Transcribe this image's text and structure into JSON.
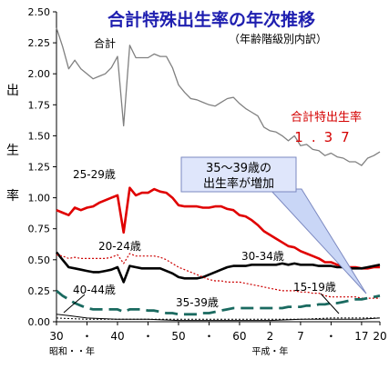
{
  "chart_data": {
    "type": "line",
    "title": "合計特殊出生率の年次推移",
    "subtitle": "（年齢階級別内訳）",
    "ylabel": [
      "出",
      "生",
      "率"
    ],
    "ylim": [
      0,
      2.5
    ],
    "yticks": [
      "0.00",
      "0.25",
      "0.50",
      "0.75",
      "1.00",
      "1.25",
      "1.50",
      "1.75",
      "2.00",
      "2.25",
      "2.50"
    ],
    "xlim": [
      1955,
      2008
    ],
    "xticks": [
      {
        "x": 1955,
        "label": "30"
      },
      {
        "x": 1960,
        "label": "・"
      },
      {
        "x": 1965,
        "label": "40"
      },
      {
        "x": 1970,
        "label": "・"
      },
      {
        "x": 1975,
        "label": "50"
      },
      {
        "x": 1980,
        "label": "・"
      },
      {
        "x": 1985,
        "label": "60"
      },
      {
        "x": 1990,
        "label": "2"
      },
      {
        "x": 1995,
        "label": "7"
      },
      {
        "x": 2000,
        "label": "・"
      },
      {
        "x": 2005,
        "label": "17"
      },
      {
        "x": 2008,
        "label": "20"
      }
    ],
    "era_labels": [
      {
        "x": 1955,
        "text": "昭和・・年"
      },
      {
        "x": 1990,
        "text": "平成・年"
      }
    ],
    "grid": false,
    "highlight": {
      "text": "1.37",
      "color": "#d40000",
      "label": "合計特出生率"
    },
    "callout": {
      "lines": [
        "35～39歳の",
        "出生率が増加"
      ]
    },
    "series": [
      {
        "name": "合計",
        "color": "#808080",
        "style": "solid",
        "width": 1.3,
        "x": [
          1955,
          1956,
          1957,
          1958,
          1959,
          1960,
          1961,
          1962,
          1963,
          1964,
          1965,
          1966,
          1967,
          1968,
          1969,
          1970,
          1971,
          1972,
          1973,
          1974,
          1975,
          1976,
          1977,
          1978,
          1979,
          1980,
          1981,
          1982,
          1983,
          1984,
          1985,
          1986,
          1987,
          1988,
          1989,
          1990,
          1991,
          1992,
          1993,
          1994,
          1995,
          1996,
          1997,
          1998,
          1999,
          2000,
          2001,
          2002,
          2003,
          2004,
          2005,
          2006,
          2007,
          2008
        ],
        "y": [
          2.37,
          2.22,
          2.04,
          2.11,
          2.04,
          2.0,
          1.96,
          1.98,
          2.0,
          2.05,
          2.14,
          1.58,
          2.23,
          2.13,
          2.13,
          2.13,
          2.16,
          2.14,
          2.14,
          2.05,
          1.91,
          1.85,
          1.8,
          1.79,
          1.77,
          1.75,
          1.74,
          1.77,
          1.8,
          1.81,
          1.76,
          1.72,
          1.69,
          1.66,
          1.57,
          1.54,
          1.53,
          1.5,
          1.46,
          1.5,
          1.42,
          1.43,
          1.39,
          1.38,
          1.34,
          1.36,
          1.33,
          1.32,
          1.29,
          1.29,
          1.26,
          1.32,
          1.34,
          1.37
        ]
      },
      {
        "name": "25-29歳",
        "color": "#e00000",
        "style": "solid",
        "width": 2.6,
        "x": [
          1955,
          1956,
          1957,
          1958,
          1959,
          1960,
          1961,
          1962,
          1963,
          1964,
          1965,
          1966,
          1967,
          1968,
          1969,
          1970,
          1971,
          1972,
          1973,
          1974,
          1975,
          1976,
          1977,
          1978,
          1979,
          1980,
          1981,
          1982,
          1983,
          1984,
          1985,
          1986,
          1987,
          1988,
          1989,
          1990,
          1991,
          1992,
          1993,
          1994,
          1995,
          1996,
          1997,
          1998,
          1999,
          2000,
          2001,
          2002,
          2003,
          2004,
          2005,
          2006,
          2007,
          2008
        ],
        "y": [
          0.9,
          0.88,
          0.86,
          0.92,
          0.9,
          0.92,
          0.93,
          0.96,
          0.98,
          1.0,
          1.02,
          0.72,
          1.08,
          1.02,
          1.04,
          1.04,
          1.07,
          1.05,
          1.04,
          1.0,
          0.94,
          0.93,
          0.93,
          0.93,
          0.92,
          0.92,
          0.93,
          0.93,
          0.91,
          0.9,
          0.86,
          0.85,
          0.82,
          0.78,
          0.73,
          0.7,
          0.67,
          0.64,
          0.61,
          0.6,
          0.57,
          0.55,
          0.53,
          0.51,
          0.48,
          0.48,
          0.46,
          0.45,
          0.44,
          0.44,
          0.43,
          0.43,
          0.44,
          0.44
        ]
      },
      {
        "name": "30-34歳",
        "color": "#000000",
        "style": "solid",
        "width": 2.6,
        "x": [
          1955,
          1956,
          1957,
          1958,
          1959,
          1960,
          1961,
          1962,
          1963,
          1964,
          1965,
          1966,
          1967,
          1968,
          1969,
          1970,
          1971,
          1972,
          1973,
          1974,
          1975,
          1976,
          1977,
          1978,
          1979,
          1980,
          1981,
          1982,
          1983,
          1984,
          1985,
          1986,
          1987,
          1988,
          1989,
          1990,
          1991,
          1992,
          1993,
          1994,
          1995,
          1996,
          1997,
          1998,
          1999,
          2000,
          2001,
          2002,
          2003,
          2004,
          2005,
          2006,
          2007,
          2008
        ],
        "y": [
          0.56,
          0.5,
          0.44,
          0.43,
          0.42,
          0.41,
          0.4,
          0.4,
          0.41,
          0.42,
          0.44,
          0.32,
          0.45,
          0.44,
          0.43,
          0.43,
          0.43,
          0.43,
          0.41,
          0.39,
          0.36,
          0.35,
          0.35,
          0.35,
          0.36,
          0.38,
          0.4,
          0.42,
          0.44,
          0.45,
          0.45,
          0.45,
          0.46,
          0.46,
          0.46,
          0.46,
          0.46,
          0.47,
          0.46,
          0.47,
          0.46,
          0.46,
          0.46,
          0.45,
          0.45,
          0.45,
          0.44,
          0.44,
          0.43,
          0.43,
          0.43,
          0.44,
          0.45,
          0.46
        ]
      },
      {
        "name": "20-24歳",
        "color": "#cc0000",
        "style": "dotted",
        "width": 1.2,
        "x": [
          1955,
          1956,
          1957,
          1958,
          1959,
          1960,
          1961,
          1962,
          1963,
          1964,
          1965,
          1966,
          1967,
          1968,
          1969,
          1970,
          1971,
          1972,
          1973,
          1974,
          1975,
          1976,
          1977,
          1978,
          1979,
          1980,
          1981,
          1982,
          1983,
          1984,
          1985,
          1986,
          1987,
          1988,
          1989,
          1990,
          1991,
          1992,
          1993,
          1994,
          1995,
          1996,
          1997,
          1998,
          1999,
          2000,
          2001,
          2002,
          2003,
          2004,
          2005,
          2006,
          2007,
          2008
        ],
        "y": [
          0.54,
          0.53,
          0.51,
          0.52,
          0.51,
          0.51,
          0.51,
          0.51,
          0.51,
          0.52,
          0.54,
          0.47,
          0.55,
          0.53,
          0.53,
          0.53,
          0.53,
          0.52,
          0.5,
          0.47,
          0.44,
          0.42,
          0.4,
          0.38,
          0.36,
          0.34,
          0.33,
          0.33,
          0.32,
          0.32,
          0.32,
          0.31,
          0.3,
          0.29,
          0.28,
          0.27,
          0.26,
          0.25,
          0.25,
          0.25,
          0.24,
          0.24,
          0.23,
          0.23,
          0.21,
          0.2,
          0.2,
          0.2,
          0.2,
          0.2,
          0.19,
          0.19,
          0.19,
          0.19
        ]
      },
      {
        "name": "35-39歳",
        "color": "#1a6a60",
        "style": "dashed",
        "width": 2.8,
        "x": [
          1955,
          1956,
          1957,
          1958,
          1959,
          1960,
          1961,
          1962,
          1963,
          1964,
          1965,
          1966,
          1967,
          1968,
          1969,
          1970,
          1971,
          1972,
          1973,
          1974,
          1975,
          1976,
          1977,
          1978,
          1979,
          1980,
          1981,
          1982,
          1983,
          1984,
          1985,
          1986,
          1987,
          1988,
          1989,
          1990,
          1991,
          1992,
          1993,
          1994,
          1995,
          1996,
          1997,
          1998,
          1999,
          2000,
          2001,
          2002,
          2003,
          2004,
          2005,
          2006,
          2007,
          2008
        ],
        "y": [
          0.25,
          0.21,
          0.18,
          0.15,
          0.13,
          0.11,
          0.1,
          0.1,
          0.1,
          0.1,
          0.1,
          0.08,
          0.1,
          0.1,
          0.1,
          0.09,
          0.09,
          0.08,
          0.07,
          0.07,
          0.06,
          0.06,
          0.06,
          0.06,
          0.07,
          0.07,
          0.08,
          0.09,
          0.1,
          0.11,
          0.11,
          0.11,
          0.11,
          0.11,
          0.11,
          0.11,
          0.11,
          0.11,
          0.12,
          0.12,
          0.12,
          0.13,
          0.13,
          0.14,
          0.14,
          0.15,
          0.15,
          0.16,
          0.17,
          0.18,
          0.18,
          0.19,
          0.2,
          0.21
        ]
      },
      {
        "name": "15-19歳",
        "color": "#000000",
        "style": "dotted",
        "width": 1.0,
        "x": [
          1955,
          1960,
          1965,
          1970,
          1975,
          1980,
          1985,
          1990,
          1995,
          2000,
          2005,
          2008
        ],
        "y": [
          0.03,
          0.02,
          0.02,
          0.02,
          0.02,
          0.02,
          0.02,
          0.02,
          0.02,
          0.03,
          0.03,
          0.03
        ]
      },
      {
        "name": "40-44歳",
        "color": "#000000",
        "style": "solid",
        "width": 1.0,
        "x": [
          1955,
          1957,
          1960,
          1965,
          1970,
          1975,
          1980,
          1985,
          1990,
          1995,
          2000,
          2005,
          2008
        ],
        "y": [
          0.06,
          0.05,
          0.03,
          0.02,
          0.02,
          0.01,
          0.01,
          0.01,
          0.01,
          0.02,
          0.02,
          0.02,
          0.03
        ]
      }
    ],
    "annotations": [
      {
        "text": "合計",
        "series": "合計"
      },
      {
        "text": "25-29歳",
        "series": "25-29歳"
      },
      {
        "text": "20-24歳",
        "series": "20-24歳"
      },
      {
        "text": "30-34歳",
        "series": "30-34歳"
      },
      {
        "text": "15-19歳",
        "series": "15-19歳"
      },
      {
        "text": "40-44歳",
        "series": "40-44歳"
      },
      {
        "text": "35-39歳",
        "series": "35-39歳"
      }
    ]
  }
}
